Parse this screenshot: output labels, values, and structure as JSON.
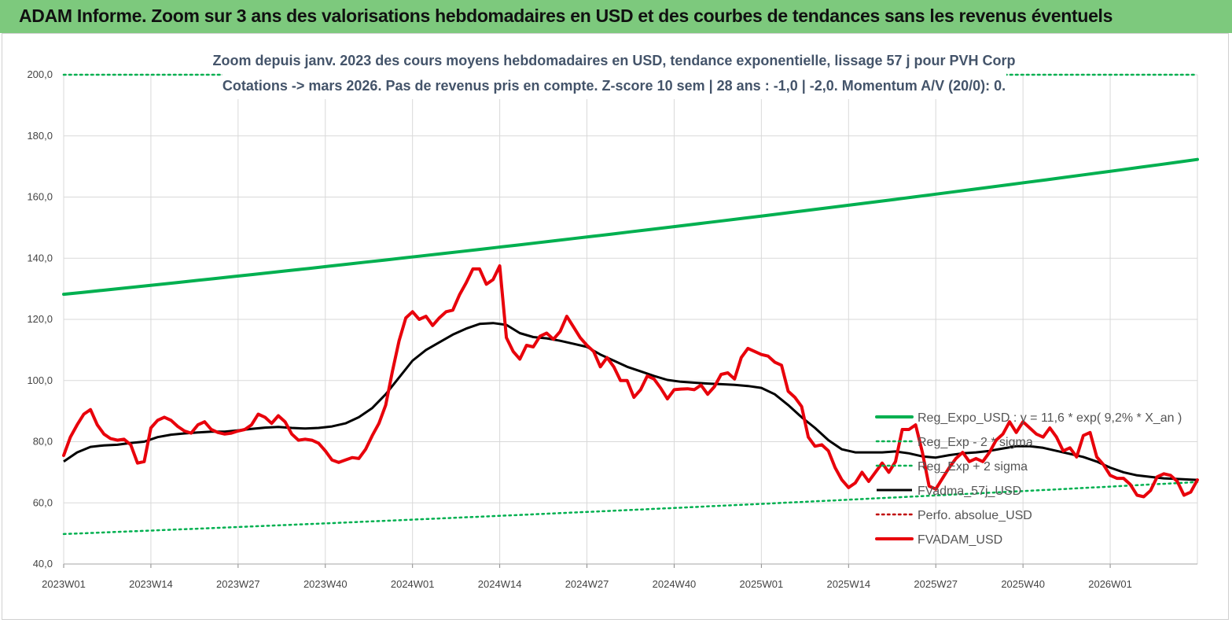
{
  "header": {
    "title": "ADAM Informe. Zoom sur 3 ans des valorisations hebdomadaires en USD et des courbes de tendances sans les revenus éventuels"
  },
  "chart_data": {
    "type": "line",
    "subtitle_line1": "Zoom depuis janv. 2023 des cours moyens hebdomadaires en USD, tendance exponentielle, lissage 57 j pour PVH Corp",
    "subtitle_line2": "Cotations -> mars 2026. Pas de revenus pris en compte. Z-score 10 sem  | 28 ans : -1,0 | -2,0. Momentum A/V (20/0): 0.",
    "ylim": [
      40,
      200
    ],
    "yticks": [
      "40,0",
      "60,0",
      "80,0",
      "100,0",
      "120,0",
      "140,0",
      "160,0",
      "180,0",
      "200,0"
    ],
    "xlim": [
      0,
      169
    ],
    "xticks": [
      {
        "pos": 0,
        "label": "2023W01"
      },
      {
        "pos": 13,
        "label": "2023W14"
      },
      {
        "pos": 26,
        "label": "2023W27"
      },
      {
        "pos": 39,
        "label": "2023W40"
      },
      {
        "pos": 52,
        "label": "2024W01"
      },
      {
        "pos": 65,
        "label": "2024W14"
      },
      {
        "pos": 78,
        "label": "2024W27"
      },
      {
        "pos": 91,
        "label": "2024W40"
      },
      {
        "pos": 104,
        "label": "2025W01"
      },
      {
        "pos": 117,
        "label": "2025W14"
      },
      {
        "pos": 130,
        "label": "2025W27"
      },
      {
        "pos": 143,
        "label": "2025W40"
      },
      {
        "pos": 156,
        "label": "2026W01"
      }
    ],
    "grid": true,
    "legend_position": "bottom-right",
    "series": [
      {
        "name": "Reg_Expo_USD : y = 11,6 * exp( 9,2% *  X_an )",
        "color": "#00b050",
        "style": "solid-thick",
        "start": 128.2,
        "end": 172.3
      },
      {
        "name": "Reg_Exp - 2 * sigma",
        "color": "#00b050",
        "style": "dotted",
        "start": 49.8,
        "end": 66.8
      },
      {
        "name": "Reg_Exp + 2 sigma",
        "color": "#00b050",
        "style": "dotted",
        "start": 200.0,
        "end": 200.0
      },
      {
        "name": "FVadma_57j_USD",
        "color": "#000000",
        "style": "solid",
        "points": [
          [
            0,
            73.5
          ],
          [
            2,
            76.5
          ],
          [
            4,
            78.3
          ],
          [
            6,
            78.8
          ],
          [
            8,
            79.0
          ],
          [
            10,
            79.6
          ],
          [
            12,
            80.0
          ],
          [
            14,
            81.5
          ],
          [
            16,
            82.3
          ],
          [
            18,
            82.7
          ],
          [
            20,
            83.0
          ],
          [
            22,
            83.3
          ],
          [
            24,
            83.3
          ],
          [
            26,
            83.7
          ],
          [
            28,
            84.2
          ],
          [
            30,
            84.6
          ],
          [
            32,
            84.8
          ],
          [
            34,
            84.5
          ],
          [
            36,
            84.3
          ],
          [
            38,
            84.5
          ],
          [
            40,
            85.0
          ],
          [
            42,
            86.0
          ],
          [
            44,
            88.0
          ],
          [
            46,
            91.0
          ],
          [
            48,
            95.5
          ],
          [
            50,
            101.0
          ],
          [
            52,
            106.5
          ],
          [
            54,
            110.0
          ],
          [
            56,
            112.5
          ],
          [
            58,
            115.0
          ],
          [
            60,
            117.0
          ],
          [
            62,
            118.5
          ],
          [
            64,
            118.8
          ],
          [
            66,
            118.2
          ],
          [
            68,
            115.5
          ],
          [
            70,
            114.2
          ],
          [
            72,
            113.8
          ],
          [
            74,
            113.0
          ],
          [
            76,
            112.0
          ],
          [
            78,
            111.0
          ],
          [
            80,
            108.5
          ],
          [
            82,
            106.5
          ],
          [
            84,
            104.5
          ],
          [
            86,
            103.0
          ],
          [
            88,
            101.5
          ],
          [
            90,
            100.2
          ],
          [
            92,
            99.6
          ],
          [
            94,
            99.3
          ],
          [
            96,
            99.0
          ],
          [
            98,
            98.8
          ],
          [
            100,
            98.6
          ],
          [
            102,
            98.2
          ],
          [
            104,
            97.6
          ],
          [
            106,
            95.5
          ],
          [
            108,
            92.0
          ],
          [
            110,
            88.0
          ],
          [
            112,
            84.5
          ],
          [
            114,
            80.5
          ],
          [
            116,
            77.5
          ],
          [
            118,
            76.5
          ],
          [
            120,
            76.5
          ],
          [
            122,
            76.5
          ],
          [
            124,
            76.8
          ],
          [
            126,
            76.2
          ],
          [
            128,
            75.2
          ],
          [
            130,
            74.8
          ],
          [
            132,
            75.6
          ],
          [
            134,
            76.2
          ],
          [
            136,
            76.5
          ],
          [
            138,
            77.0
          ],
          [
            140,
            77.8
          ],
          [
            142,
            78.5
          ],
          [
            144,
            78.5
          ],
          [
            146,
            78.0
          ],
          [
            148,
            77.0
          ],
          [
            150,
            76.0
          ],
          [
            152,
            75.0
          ],
          [
            154,
            73.5
          ],
          [
            156,
            71.5
          ],
          [
            158,
            70.0
          ],
          [
            160,
            69.0
          ],
          [
            162,
            68.5
          ],
          [
            164,
            68.0
          ],
          [
            166,
            67.8
          ],
          [
            168,
            67.6
          ],
          [
            169,
            67.5
          ]
        ]
      },
      {
        "name": "Perfo. absolue_USD",
        "color": "#c00000",
        "style": "dotted",
        "points": []
      },
      {
        "name": "FVADAM_USD",
        "color": "#e8000b",
        "style": "solid-thick",
        "points": [
          [
            0,
            75.5
          ],
          [
            1,
            81.5
          ],
          [
            2,
            85.5
          ],
          [
            3,
            89.0
          ],
          [
            4,
            90.5
          ],
          [
            5,
            85.5
          ],
          [
            6,
            82.5
          ],
          [
            7,
            81.0
          ],
          [
            8,
            80.5
          ],
          [
            9,
            80.8
          ],
          [
            10,
            79.0
          ],
          [
            11,
            73.0
          ],
          [
            12,
            73.5
          ],
          [
            13,
            84.5
          ],
          [
            14,
            87.0
          ],
          [
            15,
            88.0
          ],
          [
            16,
            87.0
          ],
          [
            17,
            85.0
          ],
          [
            18,
            83.5
          ],
          [
            19,
            82.8
          ],
          [
            20,
            85.5
          ],
          [
            21,
            86.5
          ],
          [
            22,
            84.0
          ],
          [
            23,
            83.0
          ],
          [
            24,
            82.5
          ],
          [
            25,
            82.8
          ],
          [
            26,
            83.5
          ],
          [
            27,
            84.0
          ],
          [
            28,
            85.5
          ],
          [
            29,
            89.0
          ],
          [
            30,
            88.0
          ],
          [
            31,
            86.0
          ],
          [
            32,
            88.5
          ],
          [
            33,
            86.5
          ],
          [
            34,
            82.5
          ],
          [
            35,
            80.5
          ],
          [
            36,
            80.8
          ],
          [
            37,
            80.5
          ],
          [
            38,
            79.5
          ],
          [
            39,
            77.0
          ],
          [
            40,
            74.0
          ],
          [
            41,
            73.2
          ],
          [
            42,
            74.0
          ],
          [
            43,
            74.8
          ],
          [
            44,
            74.5
          ],
          [
            45,
            77.5
          ],
          [
            46,
            82.0
          ],
          [
            47,
            86.0
          ],
          [
            48,
            92.0
          ],
          [
            49,
            103.0
          ],
          [
            50,
            113.0
          ],
          [
            51,
            120.5
          ],
          [
            52,
            122.5
          ],
          [
            53,
            120.0
          ],
          [
            54,
            121.0
          ],
          [
            55,
            118.0
          ],
          [
            56,
            120.5
          ],
          [
            57,
            122.5
          ],
          [
            58,
            123.0
          ],
          [
            59,
            128.0
          ],
          [
            60,
            132.0
          ],
          [
            61,
            136.5
          ],
          [
            62,
            136.5
          ],
          [
            63,
            131.5
          ],
          [
            64,
            133.0
          ],
          [
            65,
            137.5
          ],
          [
            66,
            114.0
          ],
          [
            67,
            109.5
          ],
          [
            68,
            107.0
          ],
          [
            69,
            111.5
          ],
          [
            70,
            111.0
          ],
          [
            71,
            114.5
          ],
          [
            72,
            115.5
          ],
          [
            73,
            113.5
          ],
          [
            74,
            116.0
          ],
          [
            75,
            121.0
          ],
          [
            76,
            117.5
          ],
          [
            77,
            114.0
          ],
          [
            78,
            111.5
          ],
          [
            79,
            109.5
          ],
          [
            80,
            104.5
          ],
          [
            81,
            107.5
          ],
          [
            82,
            104.5
          ],
          [
            83,
            100.0
          ],
          [
            84,
            100.0
          ],
          [
            85,
            94.5
          ],
          [
            86,
            97.0
          ],
          [
            87,
            101.5
          ],
          [
            88,
            100.5
          ],
          [
            89,
            97.5
          ],
          [
            90,
            94.0
          ],
          [
            91,
            97.0
          ],
          [
            92,
            97.2
          ],
          [
            93,
            97.3
          ],
          [
            94,
            97.0
          ],
          [
            95,
            98.5
          ],
          [
            96,
            95.5
          ],
          [
            97,
            98.0
          ],
          [
            98,
            102.0
          ],
          [
            99,
            102.5
          ],
          [
            100,
            100.5
          ],
          [
            101,
            107.5
          ],
          [
            102,
            110.5
          ],
          [
            103,
            109.5
          ],
          [
            104,
            108.5
          ],
          [
            105,
            108.0
          ],
          [
            106,
            106.0
          ],
          [
            107,
            105.0
          ],
          [
            108,
            96.5
          ],
          [
            109,
            94.5
          ],
          [
            110,
            91.5
          ],
          [
            111,
            81.5
          ],
          [
            112,
            78.5
          ],
          [
            113,
            79.0
          ],
          [
            114,
            77.0
          ],
          [
            115,
            71.5
          ],
          [
            116,
            67.5
          ],
          [
            117,
            65.0
          ],
          [
            118,
            66.5
          ],
          [
            119,
            70.0
          ],
          [
            120,
            67.0
          ],
          [
            121,
            70.0
          ],
          [
            122,
            73.0
          ],
          [
            123,
            70.0
          ],
          [
            124,
            73.5
          ],
          [
            125,
            84.0
          ],
          [
            126,
            84.0
          ],
          [
            127,
            85.5
          ],
          [
            128,
            76.5
          ],
          [
            129,
            65.5
          ],
          [
            130,
            64.5
          ],
          [
            131,
            68.0
          ],
          [
            132,
            71.5
          ],
          [
            133,
            74.5
          ],
          [
            134,
            76.5
          ],
          [
            135,
            73.5
          ],
          [
            136,
            74.5
          ],
          [
            137,
            73.5
          ],
          [
            138,
            76.5
          ],
          [
            139,
            80.5
          ],
          [
            140,
            82.5
          ],
          [
            141,
            86.5
          ],
          [
            142,
            83.0
          ],
          [
            143,
            86.5
          ],
          [
            144,
            84.5
          ],
          [
            145,
            82.5
          ],
          [
            146,
            81.5
          ],
          [
            147,
            84.5
          ],
          [
            148,
            81.5
          ],
          [
            149,
            77.0
          ],
          [
            150,
            78.0
          ],
          [
            151,
            75.0
          ],
          [
            152,
            82.0
          ],
          [
            153,
            83.0
          ],
          [
            154,
            75.0
          ],
          [
            155,
            72.5
          ],
          [
            156,
            69.0
          ],
          [
            157,
            68.0
          ],
          [
            158,
            68.0
          ],
          [
            159,
            66.0
          ],
          [
            160,
            62.5
          ],
          [
            161,
            62.0
          ],
          [
            162,
            64.0
          ],
          [
            163,
            68.5
          ],
          [
            164,
            69.5
          ],
          [
            165,
            69.0
          ],
          [
            166,
            67.0
          ],
          [
            167,
            62.5
          ],
          [
            168,
            63.5
          ],
          [
            169,
            67.5
          ]
        ]
      }
    ]
  }
}
